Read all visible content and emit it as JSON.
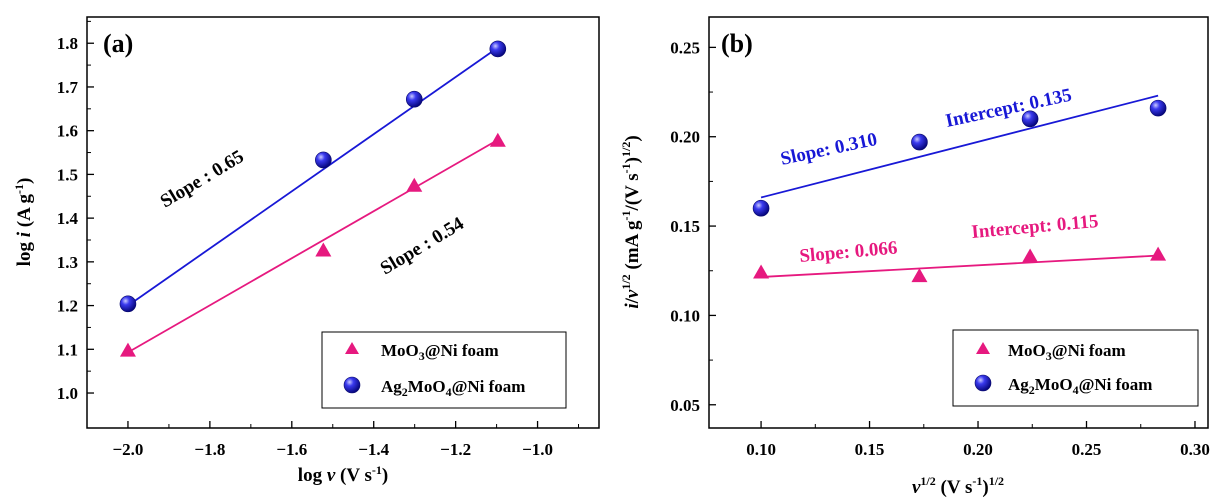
{
  "chart_data": [
    {
      "type": "scatter",
      "panel_label": "(a)",
      "xlabel": "log ν (V s⁻¹)",
      "ylabel": "log i (A g⁻¹)",
      "xlim": [
        -2.1,
        -0.85
      ],
      "ylim": [
        0.92,
        1.86
      ],
      "xticks": [
        -2.0,
        -1.8,
        -1.6,
        -1.4,
        -1.2,
        -1.0
      ],
      "yticks": [
        1.0,
        1.1,
        1.2,
        1.3,
        1.4,
        1.5,
        1.6,
        1.7,
        1.8
      ],
      "series": [
        {
          "name": "MoO3@Ni foam",
          "color": "#e6197f",
          "marker": "triangle",
          "x": [
            -2.0,
            -1.523,
            -1.301,
            -1.097
          ],
          "y": [
            1.097,
            1.326,
            1.474,
            1.577
          ],
          "fit": {
            "x": [
              -2.0,
              -1.097
            ],
            "y": [
              1.093,
              1.579
            ]
          }
        },
        {
          "name": "Ag2MoO4@Ni foam",
          "color": "#1818d6",
          "marker": "sphere",
          "x": [
            -2.0,
            -1.523,
            -1.301,
            -1.097
          ],
          "y": [
            1.204,
            1.533,
            1.672,
            1.787
          ],
          "fit": {
            "x": [
              -2.0,
              -1.097
            ],
            "y": [
              1.2,
              1.79
            ]
          }
        }
      ],
      "annotations": [
        {
          "text": "Slope : 0.65",
          "color": "#000000"
        },
        {
          "text": "Slope : 0.54",
          "color": "#000000"
        }
      ],
      "legend": "bottom-right"
    },
    {
      "type": "scatter",
      "panel_label": "(b)",
      "xlabel": "ν¹ᐟ² (V s⁻¹)¹ᐟ²",
      "ylabel": "i/ν¹ᐟ² (mA g⁻¹/(V s⁻¹)¹ᐟ²)",
      "xlim": [
        0.076,
        0.306
      ],
      "ylim": [
        0.037,
        0.267
      ],
      "xticks": [
        0.1,
        0.15,
        0.2,
        0.25,
        0.3
      ],
      "yticks": [
        0.05,
        0.1,
        0.15,
        0.2,
        0.25
      ],
      "series": [
        {
          "name": "MoO3@Ni foam",
          "color": "#e6197f",
          "marker": "triangle",
          "x": [
            0.1,
            0.173,
            0.224,
            0.283
          ],
          "y": [
            0.124,
            0.122,
            0.133,
            0.134
          ],
          "fit": {
            "x": [
              0.1,
              0.283
            ],
            "y": [
              0.1215,
              0.1335
            ]
          }
        },
        {
          "name": "Ag2MoO4@Ni foam",
          "color": "#1818d6",
          "marker": "sphere",
          "x": [
            0.1,
            0.173,
            0.224,
            0.283
          ],
          "y": [
            0.16,
            0.197,
            0.21,
            0.216
          ],
          "fit": {
            "x": [
              0.1,
              0.283
            ],
            "y": [
              0.166,
              0.223
            ]
          }
        }
      ],
      "annotations": [
        {
          "text": "Slope: 0.310",
          "color": "#1818d6"
        },
        {
          "text": "Intercept: 0.135",
          "color": "#1818d6"
        },
        {
          "text": "Slope: 0.066",
          "color": "#e6197f"
        },
        {
          "text": "Intercept: 0.115",
          "color": "#e6197f"
        }
      ],
      "legend": "bottom-right"
    }
  ]
}
